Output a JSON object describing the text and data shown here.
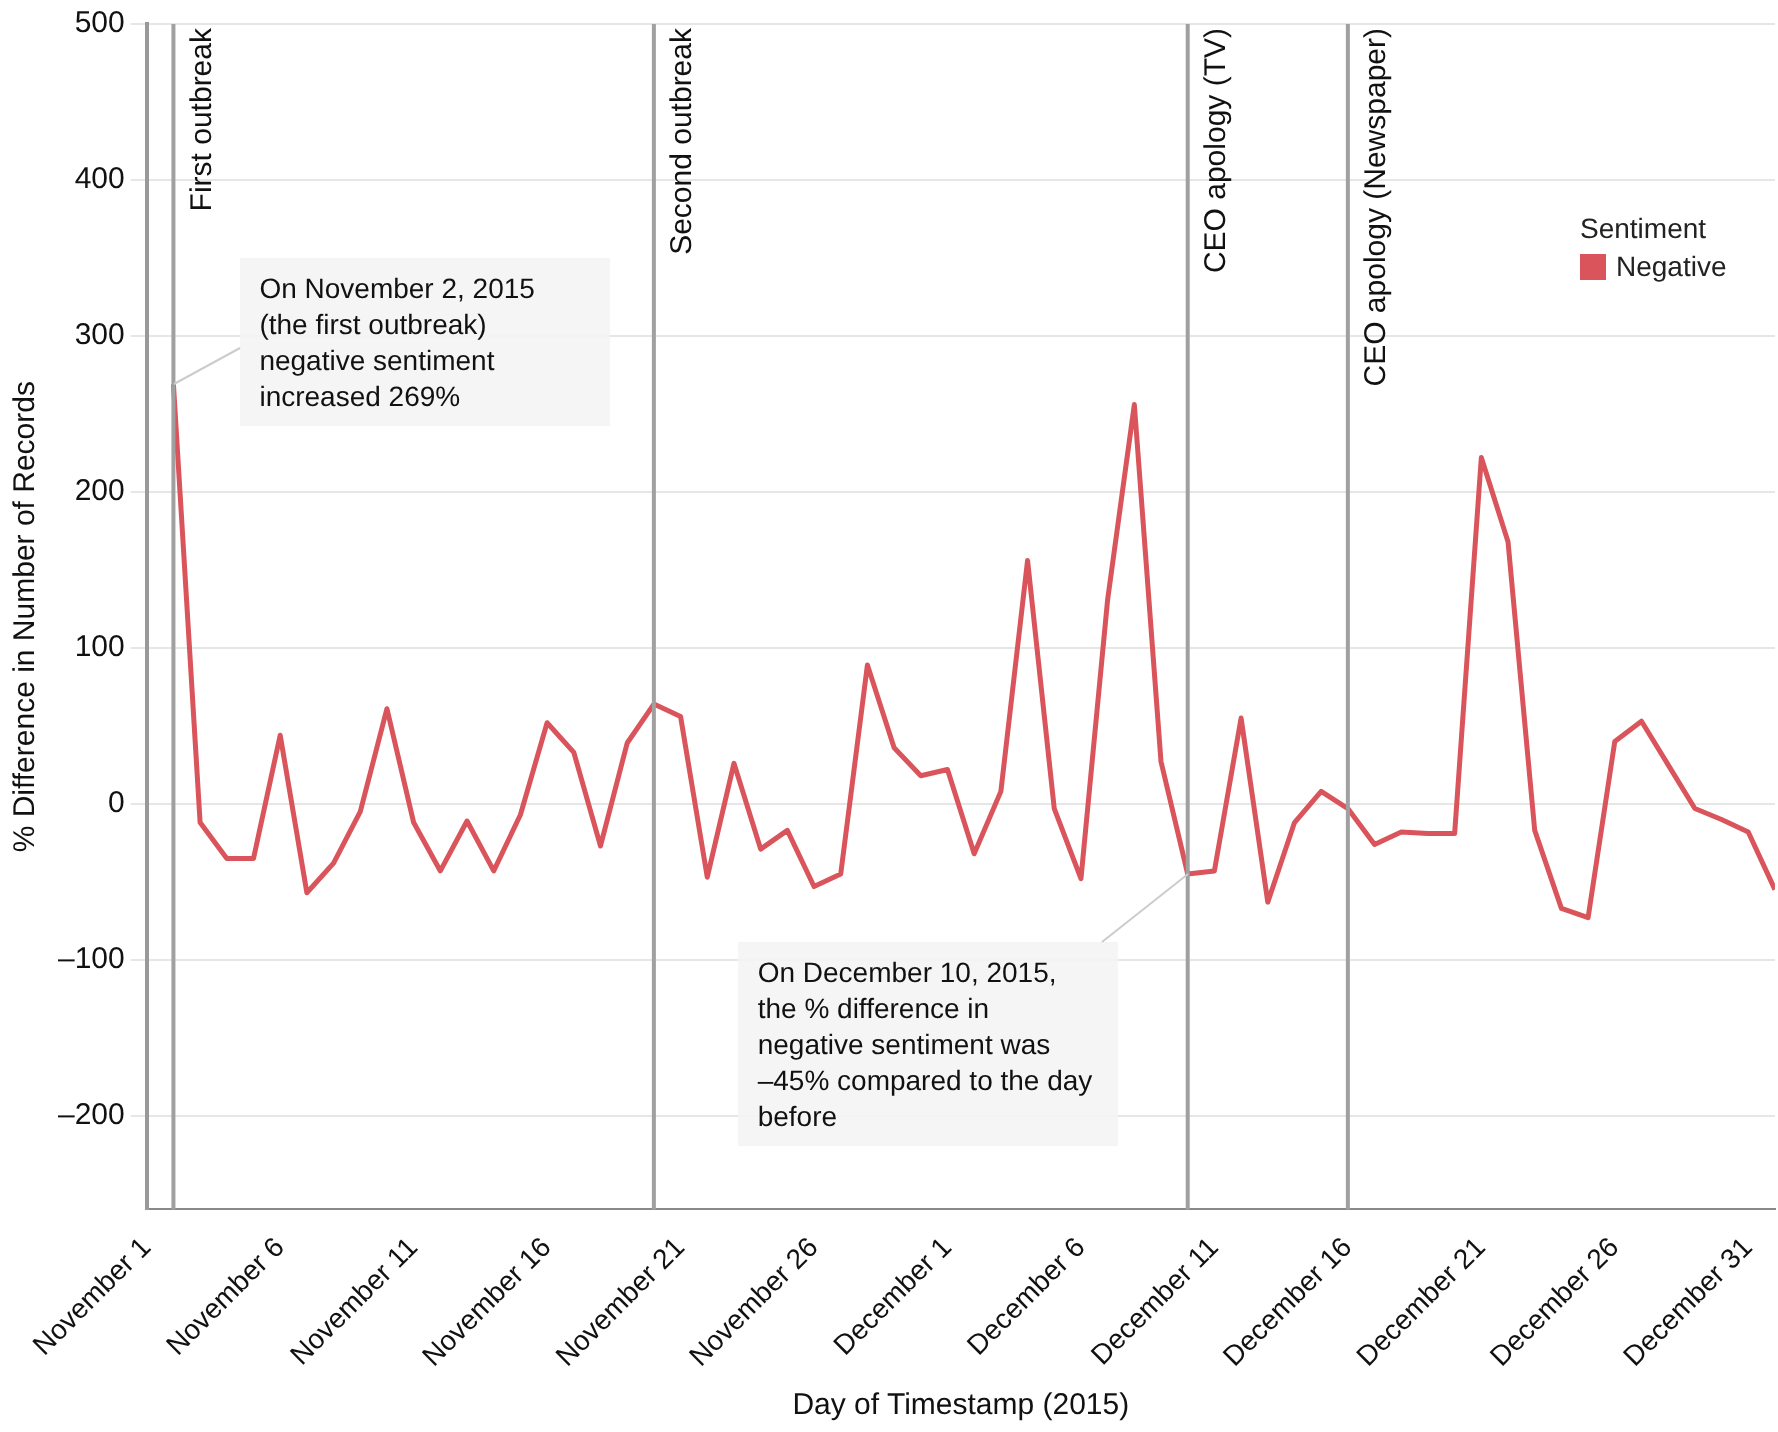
{
  "chart_data": {
    "type": "line",
    "xlabel": "Day of Timestamp (2015)",
    "ylabel": "% Difference in Number of Records",
    "legend_title": "Sentiment",
    "legend": "top right",
    "grid": "y",
    "marker": "none",
    "line_style": "solid",
    "x": [
      "2015-11-02",
      "2015-11-03",
      "2015-11-04",
      "2015-11-05",
      "2015-11-06",
      "2015-11-07",
      "2015-11-08",
      "2015-11-09",
      "2015-11-10",
      "2015-11-11",
      "2015-11-12",
      "2015-11-13",
      "2015-11-14",
      "2015-11-15",
      "2015-11-16",
      "2015-11-17",
      "2015-11-18",
      "2015-11-19",
      "2015-11-20",
      "2015-11-21",
      "2015-11-22",
      "2015-11-23",
      "2015-11-24",
      "2015-11-25",
      "2015-11-26",
      "2015-11-27",
      "2015-11-28",
      "2015-11-29",
      "2015-11-30",
      "2015-12-01",
      "2015-12-02",
      "2015-12-03",
      "2015-12-04",
      "2015-12-05",
      "2015-12-06",
      "2015-12-07",
      "2015-12-08",
      "2015-12-09",
      "2015-12-10",
      "2015-12-11",
      "2015-12-12",
      "2015-12-13",
      "2015-12-14",
      "2015-12-15",
      "2015-12-16",
      "2015-12-17",
      "2015-12-18",
      "2015-12-19",
      "2015-12-20",
      "2015-12-21",
      "2015-12-22",
      "2015-12-23",
      "2015-12-24",
      "2015-12-25",
      "2015-12-26",
      "2015-12-27",
      "2015-12-28",
      "2015-12-29",
      "2015-12-30",
      "2015-12-31",
      "2016-01-01"
    ],
    "series": [
      {
        "name": "Negative",
        "color": "#d9545b",
        "values": [
          269,
          -12,
          -35,
          -35,
          44,
          -57,
          -38,
          -5,
          61,
          -12,
          -43,
          -11,
          -43,
          -7,
          52,
          33,
          -27,
          39,
          64,
          56,
          -47,
          26,
          -29,
          -17,
          -53,
          -45,
          89,
          36,
          18,
          22,
          -32,
          8,
          156,
          -3,
          -48,
          131,
          256,
          27,
          -45,
          -43,
          55,
          -63,
          -12,
          8,
          -3,
          -26,
          -18,
          -19,
          -19,
          222,
          168,
          -17,
          -67,
          -73,
          40,
          53,
          25,
          -3,
          -10,
          -18,
          -55
        ]
      }
    ],
    "xlim": [
      "2015-11-01",
      "2016-01-01"
    ],
    "xticks": [
      {
        "value": "2015-11-01",
        "label": "November 1"
      },
      {
        "value": "2015-11-06",
        "label": "November 6"
      },
      {
        "value": "2015-11-11",
        "label": "November 11"
      },
      {
        "value": "2015-11-16",
        "label": "November 16"
      },
      {
        "value": "2015-11-21",
        "label": "November 21"
      },
      {
        "value": "2015-11-26",
        "label": "November 26"
      },
      {
        "value": "2015-12-01",
        "label": "December 1"
      },
      {
        "value": "2015-12-06",
        "label": "December 6"
      },
      {
        "value": "2015-12-11",
        "label": "December 11"
      },
      {
        "value": "2015-12-16",
        "label": "December 16"
      },
      {
        "value": "2015-12-21",
        "label": "December 21"
      },
      {
        "value": "2015-12-26",
        "label": "December 26"
      },
      {
        "value": "2015-12-31",
        "label": "December 31"
      }
    ],
    "ylim": [
      -260,
      500
    ],
    "yticks": [
      {
        "value": -200,
        "label": "–200"
      },
      {
        "value": -100,
        "label": "–100"
      },
      0,
      100,
      200,
      300,
      400,
      500
    ],
    "ref_lines": [
      {
        "axis": "x",
        "value": "2015-11-02",
        "label": "First outbreak",
        "color": "#a0a0a0"
      },
      {
        "axis": "x",
        "value": "2015-11-20",
        "label": "Second outbreak",
        "color": "#a0a0a0"
      },
      {
        "axis": "x",
        "value": "2015-12-10",
        "label": "CEO apology (TV)",
        "color": "#a0a0a0"
      },
      {
        "axis": "x",
        "value": "2015-12-16",
        "label": "CEO apology (Newspaper)",
        "color": "#a0a0a0"
      }
    ],
    "annotations": [
      {
        "text": "On November 2, 2015 (the first outbreak) negative sentiment increased 269%",
        "x": "2015-11-02",
        "y": 269
      },
      {
        "text": "On December 10, 2015, the % difference in negative sentiment was –45% compared to the day before",
        "x": "2015-12-10",
        "y": -45
      }
    ]
  }
}
